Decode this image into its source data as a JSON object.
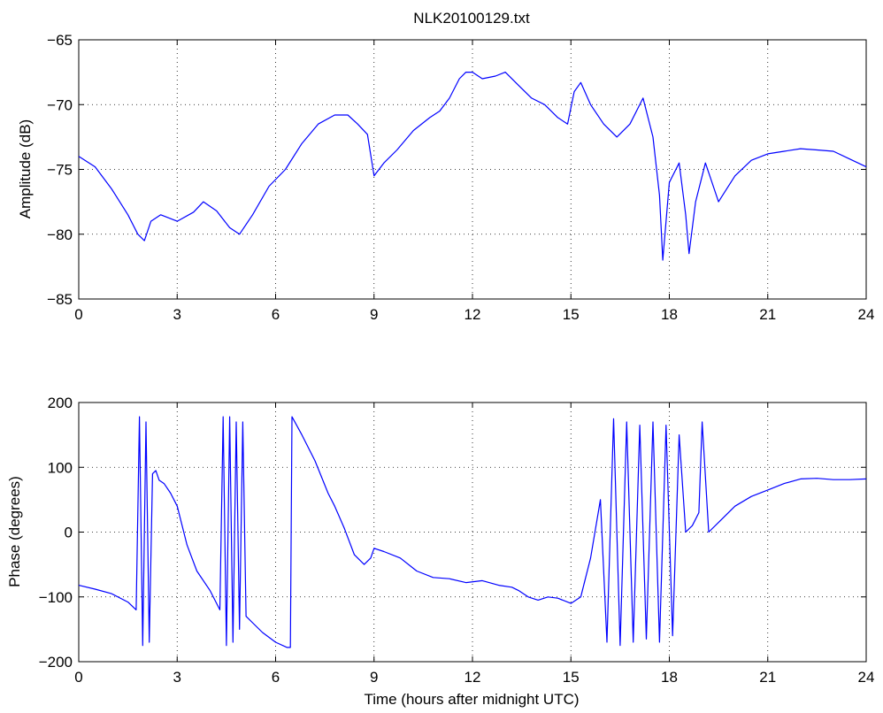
{
  "figure": {
    "title": "NLK20100129.txt",
    "line_color": "#0000ff"
  },
  "chart_data": [
    {
      "type": "line",
      "title": "NLK20100129.txt",
      "xlabel": "",
      "ylabel": "Amplitude (dB)",
      "xlim": [
        0,
        24
      ],
      "ylim": [
        -85,
        -65
      ],
      "xticks": [
        0,
        3,
        6,
        9,
        12,
        15,
        18,
        21,
        24
      ],
      "yticks": [
        -85,
        -80,
        -75,
        -70,
        -65
      ],
      "grid": true,
      "series": [
        {
          "color": "#0000ff",
          "x": [
            0,
            0.5,
            1,
            1.5,
            1.8,
            2,
            2.2,
            2.5,
            3,
            3.5,
            3.8,
            4.2,
            4.6,
            4.9,
            5.3,
            5.8,
            6.3,
            6.8,
            7.3,
            7.8,
            8.2,
            8.5,
            8.8,
            9.0,
            9.3,
            9.7,
            10.2,
            10.7,
            11.0,
            11.3,
            11.6,
            11.8,
            12.0,
            12.3,
            12.7,
            13.0,
            13.4,
            13.8,
            14.2,
            14.6,
            14.9,
            15.1,
            15.3,
            15.6,
            16.0,
            16.4,
            16.8,
            17.2,
            17.5,
            17.7,
            17.8,
            18.0,
            18.3,
            18.5,
            18.6,
            18.8,
            19.1,
            19.5,
            20.0,
            20.5,
            21.0,
            21.5,
            22.0,
            22.5,
            23.0,
            23.5,
            24.0
          ],
          "y": [
            -74,
            -74.8,
            -76.5,
            -78.5,
            -80,
            -80.5,
            -79,
            -78.5,
            -79,
            -78.3,
            -77.5,
            -78.2,
            -79.5,
            -80,
            -78.5,
            -76.3,
            -75,
            -73,
            -71.5,
            -70.8,
            -70.8,
            -71.5,
            -72.3,
            -75.5,
            -74.5,
            -73.5,
            -72,
            -71,
            -70.5,
            -69.5,
            -68,
            -67.5,
            -67.5,
            -68,
            -67.8,
            -67.5,
            -68.5,
            -69.5,
            -70,
            -71,
            -71.5,
            -69,
            -68.3,
            -70,
            -71.5,
            -72.5,
            -71.5,
            -69.5,
            -72.5,
            -77,
            -82,
            -76,
            -74.5,
            -78.5,
            -81.5,
            -77.5,
            -74.5,
            -77.5,
            -75.5,
            -74.3,
            -73.8,
            -73.6,
            -73.4,
            -73.5,
            -73.6,
            -74.2,
            -74.8
          ]
        }
      ]
    },
    {
      "type": "line",
      "title": "",
      "xlabel": "Time (hours after midnight UTC)",
      "ylabel": "Phase (degrees)",
      "xlim": [
        0,
        24
      ],
      "ylim": [
        -200,
        200
      ],
      "xticks": [
        0,
        3,
        6,
        9,
        12,
        15,
        18,
        21,
        24
      ],
      "yticks": [
        -200,
        -100,
        0,
        100,
        200
      ],
      "grid": true,
      "series": [
        {
          "color": "#0000ff",
          "x": [
            0,
            0.5,
            1.0,
            1.5,
            1.75,
            1.85,
            1.95,
            2.05,
            2.15,
            2.25,
            2.35,
            2.45,
            2.6,
            2.8,
            3.0,
            3.3,
            3.6,
            4.0,
            4.3,
            4.4,
            4.5,
            4.6,
            4.7,
            4.8,
            4.9,
            5.0,
            5.1,
            5.3,
            5.6,
            6.0,
            6.35,
            6.45,
            6.5,
            6.8,
            7.2,
            7.6,
            7.8,
            8.1,
            8.4,
            8.7,
            8.9,
            9.0,
            9.3,
            9.8,
            10.3,
            10.8,
            11.3,
            11.8,
            12.3,
            12.8,
            13.2,
            13.4,
            13.7,
            14.0,
            14.3,
            14.6,
            15.0,
            15.3,
            15.6,
            15.9,
            16.1,
            16.3,
            16.5,
            16.7,
            16.9,
            17.1,
            17.3,
            17.5,
            17.7,
            17.9,
            18.1,
            18.3,
            18.5,
            18.7,
            18.9,
            19.0,
            19.2,
            19.6,
            20.0,
            20.5,
            21.0,
            21.5,
            22.0,
            22.5,
            23.0,
            23.5,
            24.0
          ],
          "y": [
            -82,
            -88,
            -95,
            -108,
            -120,
            178,
            -175,
            170,
            -170,
            90,
            95,
            80,
            75,
            60,
            40,
            -20,
            -60,
            -90,
            -120,
            178,
            -175,
            178,
            -170,
            170,
            -150,
            170,
            -130,
            -140,
            -155,
            -170,
            -178,
            -178,
            178,
            150,
            110,
            60,
            40,
            5,
            -35,
            -50,
            -40,
            -25,
            -30,
            -40,
            -60,
            -70,
            -72,
            -78,
            -75,
            -82,
            -85,
            -90,
            -100,
            -105,
            -100,
            -102,
            -110,
            -100,
            -40,
            50,
            -170,
            175,
            -175,
            170,
            -170,
            165,
            -165,
            170,
            -170,
            165,
            -160,
            150,
            0,
            10,
            30,
            170,
            0,
            20,
            40,
            55,
            65,
            75,
            82,
            83,
            81,
            81,
            82
          ]
        }
      ]
    }
  ]
}
